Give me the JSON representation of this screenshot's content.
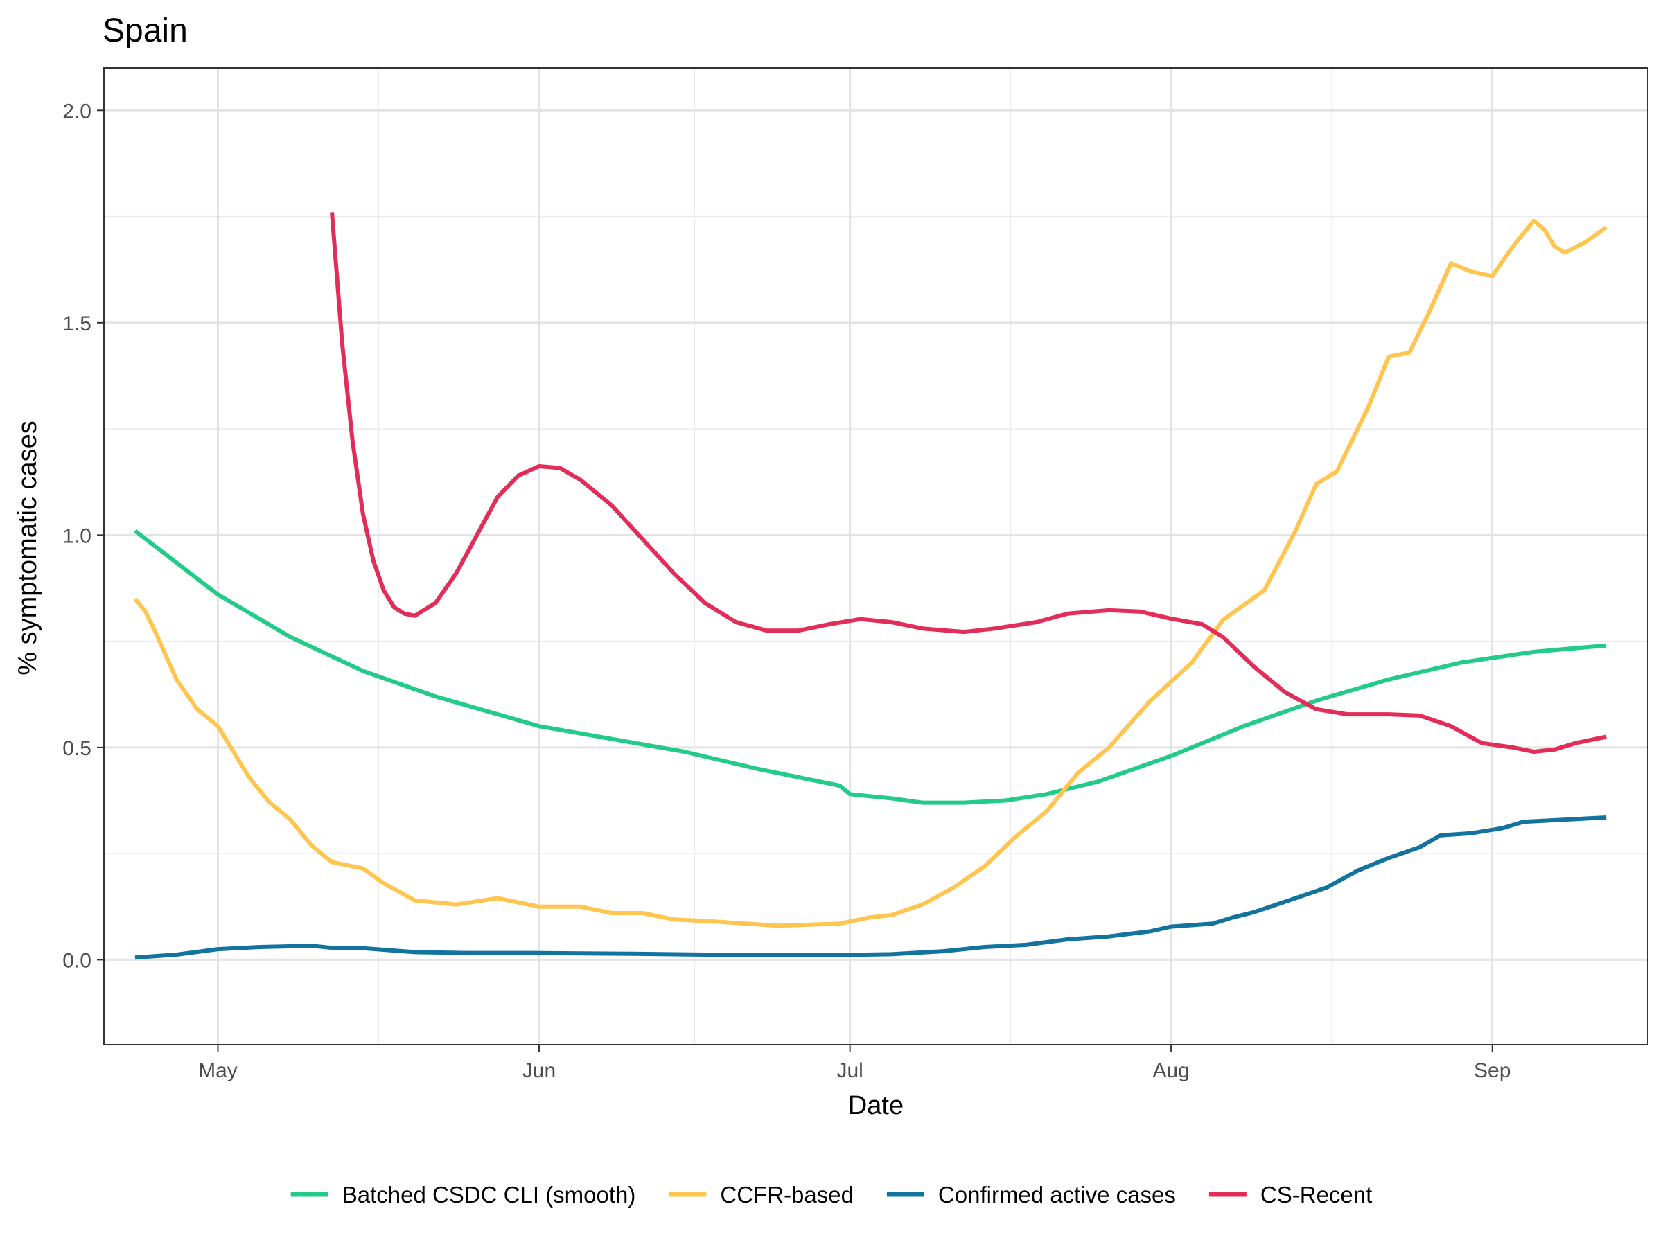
{
  "chart_data": {
    "type": "line",
    "title": "Spain",
    "xlabel": "Date",
    "ylabel": "% symptomatic cases",
    "x_ticks": [
      {
        "date": "2020-05-01",
        "label": "May"
      },
      {
        "date": "2020-06-01",
        "label": "Jun"
      },
      {
        "date": "2020-07-01",
        "label": "Jul"
      },
      {
        "date": "2020-08-01",
        "label": "Aug"
      },
      {
        "date": "2020-09-01",
        "label": "Sep"
      }
    ],
    "y_ticks": [
      {
        "value": 0.0,
        "label": "0.0"
      },
      {
        "value": 0.5,
        "label": "0.5"
      },
      {
        "value": 1.0,
        "label": "1.0"
      },
      {
        "value": 1.5,
        "label": "1.5"
      },
      {
        "value": 2.0,
        "label": "2.0"
      }
    ],
    "xlim": [
      "2020-04-20",
      "2020-09-16"
    ],
    "ylim": [
      -0.2,
      2.1
    ],
    "grid": true,
    "legend_position": "bottom",
    "series": [
      {
        "name": "Batched CSDC CLI (smooth)",
        "color": "#22CC88",
        "points": [
          [
            "2020-04-23",
            1.01
          ],
          [
            "2020-05-01",
            0.86
          ],
          [
            "2020-05-08",
            0.76
          ],
          [
            "2020-05-15",
            0.68
          ],
          [
            "2020-05-22",
            0.62
          ],
          [
            "2020-06-01",
            0.55
          ],
          [
            "2020-06-08",
            0.52
          ],
          [
            "2020-06-15",
            0.49
          ],
          [
            "2020-06-22",
            0.45
          ],
          [
            "2020-06-30",
            0.41
          ],
          [
            "2020-07-01",
            0.39
          ],
          [
            "2020-07-05",
            0.38
          ],
          [
            "2020-07-08",
            0.37
          ],
          [
            "2020-07-12",
            0.37
          ],
          [
            "2020-07-16",
            0.375
          ],
          [
            "2020-07-20",
            0.39
          ],
          [
            "2020-07-25",
            0.42
          ],
          [
            "2020-08-01",
            0.48
          ],
          [
            "2020-08-08",
            0.55
          ],
          [
            "2020-08-15",
            0.61
          ],
          [
            "2020-08-22",
            0.66
          ],
          [
            "2020-08-29",
            0.7
          ],
          [
            "2020-09-05",
            0.725
          ],
          [
            "2020-09-12",
            0.74
          ]
        ]
      },
      {
        "name": "CCFR-based",
        "color": "#FFC54F",
        "points": [
          [
            "2020-04-23",
            0.85
          ],
          [
            "2020-04-24",
            0.82
          ],
          [
            "2020-04-25",
            0.77
          ],
          [
            "2020-04-27",
            0.66
          ],
          [
            "2020-04-29",
            0.59
          ],
          [
            "2020-05-01",
            0.55
          ],
          [
            "2020-05-02",
            0.51
          ],
          [
            "2020-05-04",
            0.43
          ],
          [
            "2020-05-06",
            0.37
          ],
          [
            "2020-05-08",
            0.33
          ],
          [
            "2020-05-10",
            0.27
          ],
          [
            "2020-05-12",
            0.23
          ],
          [
            "2020-05-15",
            0.215
          ],
          [
            "2020-05-17",
            0.18
          ],
          [
            "2020-05-20",
            0.14
          ],
          [
            "2020-05-24",
            0.13
          ],
          [
            "2020-05-28",
            0.145
          ],
          [
            "2020-06-01",
            0.125
          ],
          [
            "2020-06-05",
            0.125
          ],
          [
            "2020-06-08",
            0.11
          ],
          [
            "2020-06-11",
            0.11
          ],
          [
            "2020-06-14",
            0.095
          ],
          [
            "2020-06-18",
            0.09
          ],
          [
            "2020-06-24",
            0.08
          ],
          [
            "2020-06-30",
            0.085
          ],
          [
            "2020-07-03",
            0.1
          ],
          [
            "2020-07-05",
            0.105
          ],
          [
            "2020-07-08",
            0.13
          ],
          [
            "2020-07-11",
            0.17
          ],
          [
            "2020-07-14",
            0.22
          ],
          [
            "2020-07-17",
            0.29
          ],
          [
            "2020-07-20",
            0.35
          ],
          [
            "2020-07-23",
            0.44
          ],
          [
            "2020-07-26",
            0.5
          ],
          [
            "2020-07-30",
            0.61
          ],
          [
            "2020-08-03",
            0.7
          ],
          [
            "2020-08-06",
            0.8
          ],
          [
            "2020-08-10",
            0.87
          ],
          [
            "2020-08-13",
            1.01
          ],
          [
            "2020-08-15",
            1.12
          ],
          [
            "2020-08-17",
            1.15
          ],
          [
            "2020-08-20",
            1.3
          ],
          [
            "2020-08-22",
            1.42
          ],
          [
            "2020-08-24",
            1.43
          ],
          [
            "2020-08-26",
            1.53
          ],
          [
            "2020-08-28",
            1.64
          ],
          [
            "2020-08-30",
            1.62
          ],
          [
            "2020-09-01",
            1.61
          ],
          [
            "2020-09-03",
            1.68
          ],
          [
            "2020-09-05",
            1.74
          ],
          [
            "2020-09-06",
            1.72
          ],
          [
            "2020-09-07",
            1.68
          ],
          [
            "2020-09-08",
            1.665
          ],
          [
            "2020-09-10",
            1.69
          ],
          [
            "2020-09-12",
            1.725
          ]
        ]
      },
      {
        "name": "Confirmed active cases",
        "color": "#13739F",
        "points": [
          [
            "2020-04-23",
            0.005
          ],
          [
            "2020-04-27",
            0.012
          ],
          [
            "2020-05-01",
            0.025
          ],
          [
            "2020-05-05",
            0.03
          ],
          [
            "2020-05-10",
            0.033
          ],
          [
            "2020-05-12",
            0.028
          ],
          [
            "2020-05-15",
            0.027
          ],
          [
            "2020-05-20",
            0.018
          ],
          [
            "2020-05-25",
            0.016
          ],
          [
            "2020-05-31",
            0.016
          ],
          [
            "2020-06-10",
            0.014
          ],
          [
            "2020-06-20",
            0.011
          ],
          [
            "2020-06-30",
            0.011
          ],
          [
            "2020-07-05",
            0.013
          ],
          [
            "2020-07-10",
            0.02
          ],
          [
            "2020-07-14",
            0.03
          ],
          [
            "2020-07-18",
            0.035
          ],
          [
            "2020-07-22",
            0.048
          ],
          [
            "2020-07-26",
            0.055
          ],
          [
            "2020-07-30",
            0.067
          ],
          [
            "2020-08-01",
            0.078
          ],
          [
            "2020-08-05",
            0.085
          ],
          [
            "2020-08-07",
            0.1
          ],
          [
            "2020-08-09",
            0.112
          ],
          [
            "2020-08-13",
            0.145
          ],
          [
            "2020-08-16",
            0.17
          ],
          [
            "2020-08-19",
            0.21
          ],
          [
            "2020-08-22",
            0.24
          ],
          [
            "2020-08-25",
            0.265
          ],
          [
            "2020-08-27",
            0.293
          ],
          [
            "2020-08-30",
            0.298
          ],
          [
            "2020-09-02",
            0.31
          ],
          [
            "2020-09-04",
            0.325
          ],
          [
            "2020-09-08",
            0.33
          ],
          [
            "2020-09-12",
            0.335
          ]
        ]
      },
      {
        "name": "CS-Recent",
        "color": "#E32D59",
        "points": [
          [
            "2020-05-12",
            1.76
          ],
          [
            "2020-05-13",
            1.45
          ],
          [
            "2020-05-14",
            1.22
          ],
          [
            "2020-05-15",
            1.05
          ],
          [
            "2020-05-16",
            0.94
          ],
          [
            "2020-05-17",
            0.87
          ],
          [
            "2020-05-18",
            0.83
          ],
          [
            "2020-05-19",
            0.815
          ],
          [
            "2020-05-20",
            0.81
          ],
          [
            "2020-05-22",
            0.84
          ],
          [
            "2020-05-24",
            0.91
          ],
          [
            "2020-05-26",
            1.0
          ],
          [
            "2020-05-28",
            1.09
          ],
          [
            "2020-05-30",
            1.14
          ],
          [
            "2020-06-01",
            1.162
          ],
          [
            "2020-06-03",
            1.158
          ],
          [
            "2020-06-05",
            1.13
          ],
          [
            "2020-06-08",
            1.07
          ],
          [
            "2020-06-11",
            0.99
          ],
          [
            "2020-06-14",
            0.91
          ],
          [
            "2020-06-17",
            0.84
          ],
          [
            "2020-06-20",
            0.795
          ],
          [
            "2020-06-23",
            0.775
          ],
          [
            "2020-06-26",
            0.775
          ],
          [
            "2020-06-29",
            0.79
          ],
          [
            "2020-07-02",
            0.802
          ],
          [
            "2020-07-05",
            0.795
          ],
          [
            "2020-07-08",
            0.78
          ],
          [
            "2020-07-12",
            0.772
          ],
          [
            "2020-07-15",
            0.78
          ],
          [
            "2020-07-19",
            0.795
          ],
          [
            "2020-07-22",
            0.815
          ],
          [
            "2020-07-26",
            0.823
          ],
          [
            "2020-07-29",
            0.82
          ],
          [
            "2020-08-01",
            0.803
          ],
          [
            "2020-08-04",
            0.79
          ],
          [
            "2020-08-06",
            0.76
          ],
          [
            "2020-08-09",
            0.69
          ],
          [
            "2020-08-12",
            0.63
          ],
          [
            "2020-08-15",
            0.59
          ],
          [
            "2020-08-18",
            0.578
          ],
          [
            "2020-08-22",
            0.578
          ],
          [
            "2020-08-25",
            0.575
          ],
          [
            "2020-08-28",
            0.55
          ],
          [
            "2020-08-31",
            0.51
          ],
          [
            "2020-09-03",
            0.5
          ],
          [
            "2020-09-05",
            0.49
          ],
          [
            "2020-09-07",
            0.495
          ],
          [
            "2020-09-09",
            0.51
          ],
          [
            "2020-09-12",
            0.525
          ]
        ]
      }
    ]
  }
}
